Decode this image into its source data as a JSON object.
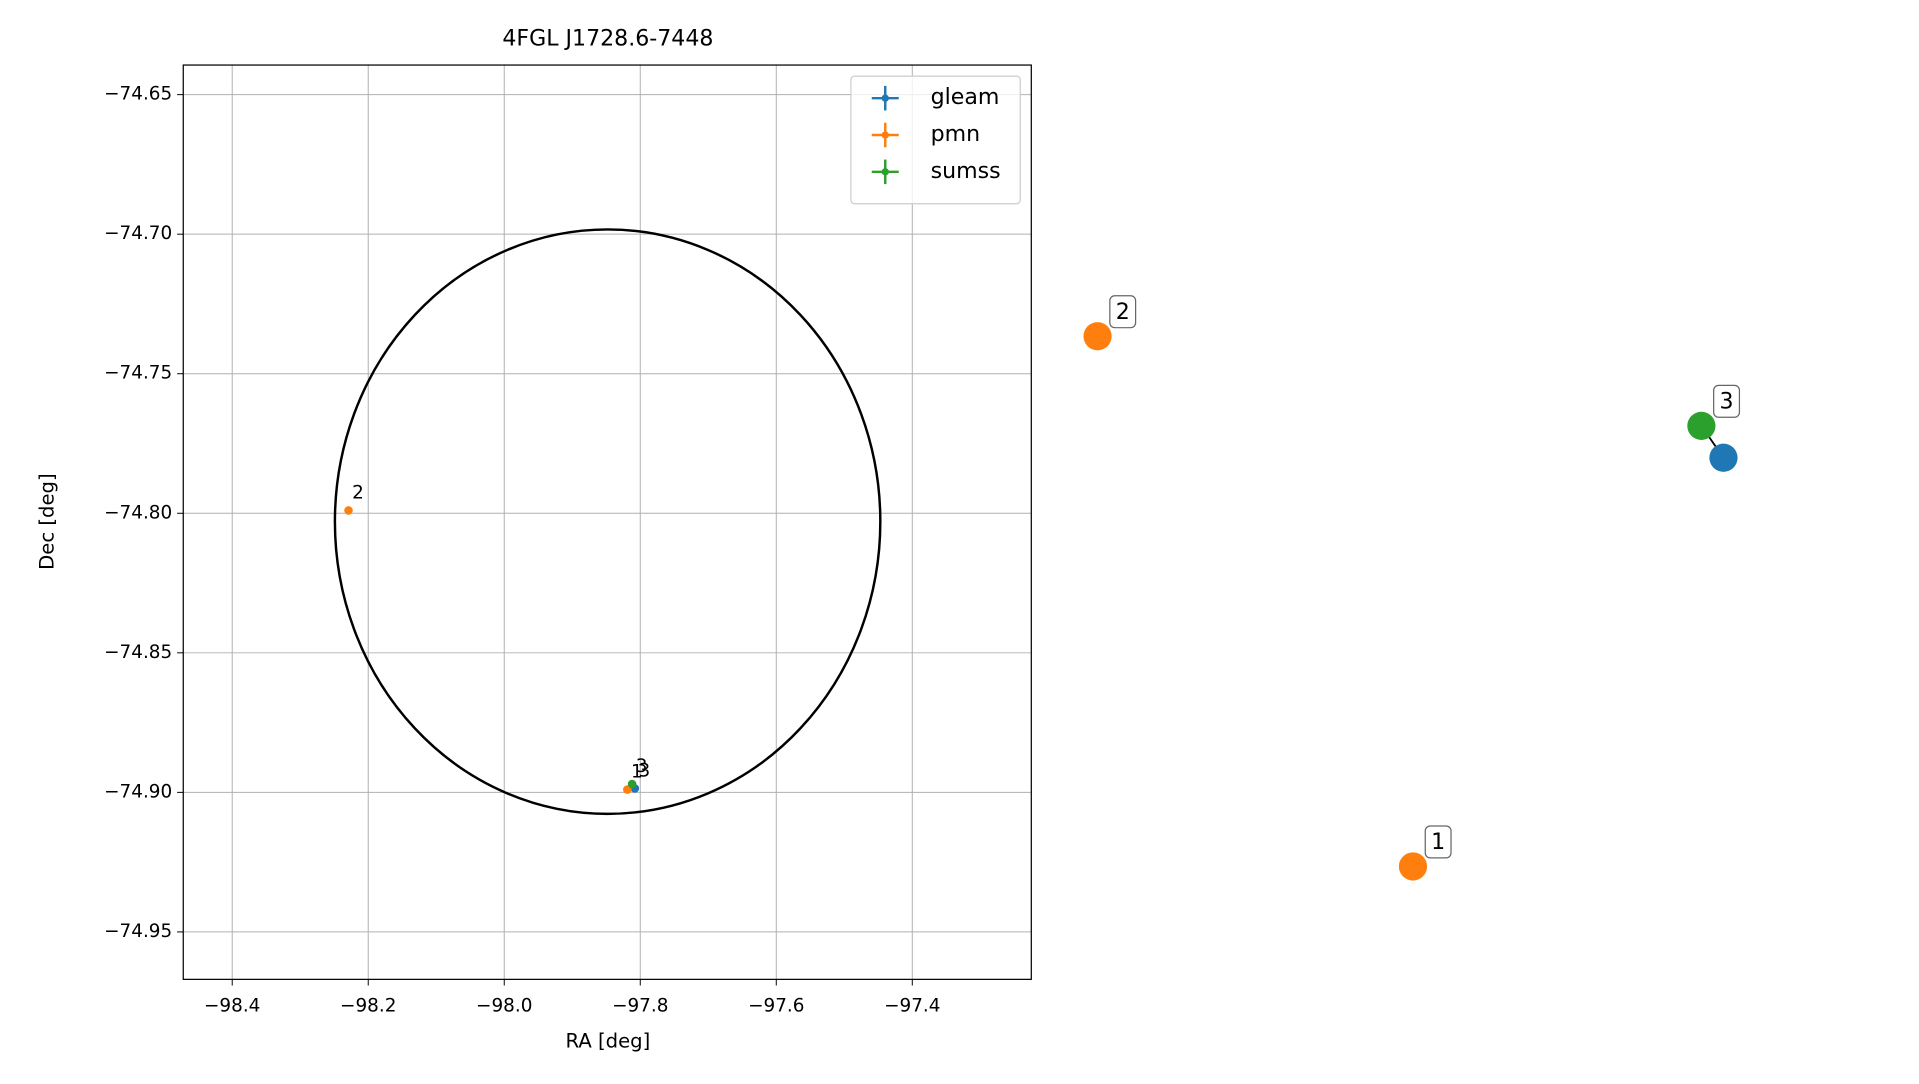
{
  "chart_data": {
    "type": "scatter",
    "title": "4FGL J1728.6-7448",
    "xlabel": "RA [deg]",
    "ylabel": "Dec [deg]",
    "xlim": [
      -98.472,
      -97.225
    ],
    "ylim": [
      -74.967,
      -74.6394
    ],
    "xticks": [
      {
        "value": -98.4,
        "label": "−98.4"
      },
      {
        "value": -98.2,
        "label": "−98.2"
      },
      {
        "value": -98.0,
        "label": "−98.0"
      },
      {
        "value": -97.8,
        "label": "−97.8"
      },
      {
        "value": -97.6,
        "label": "−97.6"
      },
      {
        "value": -97.4,
        "label": "−97.4"
      }
    ],
    "yticks": [
      {
        "value": -74.95,
        "label": "−74.95"
      },
      {
        "value": -74.9,
        "label": "−74.90"
      },
      {
        "value": -74.85,
        "label": "−74.85"
      },
      {
        "value": -74.8,
        "label": "−74.80"
      },
      {
        "value": -74.75,
        "label": "−74.75"
      },
      {
        "value": -74.7,
        "label": "−74.70"
      },
      {
        "value": -74.65,
        "label": "−74.65"
      }
    ],
    "grid": true,
    "legend": "upper right",
    "series": [
      {
        "name": "gleam",
        "color": "#1f77b4",
        "x": [
          -97.808
        ],
        "values": [
          -74.8986
        ],
        "labels": [
          "3"
        ]
      },
      {
        "name": "pmn",
        "color": "#ff7f0e",
        "x": [
          -97.819,
          -98.229
        ],
        "values": [
          -74.899,
          -74.799
        ],
        "labels": [
          "1",
          "2"
        ]
      },
      {
        "name": "sumss",
        "color": "#2ca02c",
        "x": [
          -97.812
        ],
        "values": [
          -74.897
        ],
        "labels": [
          "3"
        ]
      }
    ],
    "region": {
      "center": [
        -97.848,
        -74.803
      ],
      "semi_axes": [
        0.401,
        0.1047
      ],
      "color": "#000000"
    }
  },
  "graph": {
    "nodes": [
      {
        "label": "1",
        "color": "#ff7f0e"
      },
      {
        "label": "2",
        "color": "#ff7f0e"
      },
      {
        "label": "3",
        "color": "#2ca02c"
      },
      {
        "color": "#1f77b4"
      }
    ],
    "edges": [
      [
        2,
        3
      ]
    ]
  }
}
